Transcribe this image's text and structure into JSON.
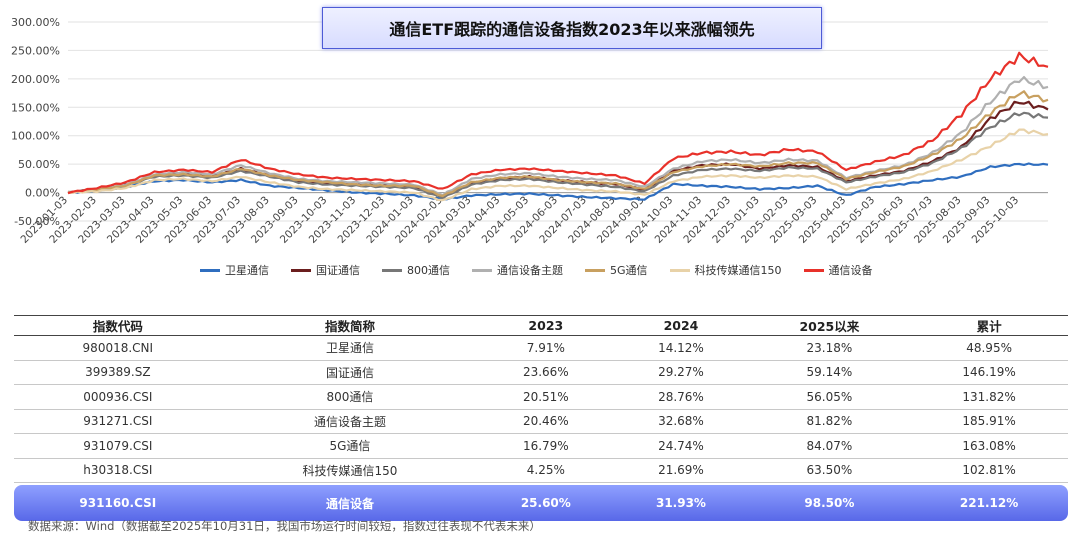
{
  "title": "通信ETF跟踪的通信设备指数2023年以来涨幅领先",
  "chart_data": {
    "type": "line",
    "x": [
      "2023-01-03",
      "2023-02-03",
      "2023-03-03",
      "2023-04-03",
      "2023-05-03",
      "2023-06-03",
      "2023-07-03",
      "2023-08-03",
      "2023-09-03",
      "2023-10-03",
      "2023-11-03",
      "2023-12-03",
      "2024-01-03",
      "2024-02-03",
      "2024-03-03",
      "2024-04-03",
      "2024-05-03",
      "2024-06-03",
      "2024-07-03",
      "2024-08-03",
      "2024-09-03",
      "2024-10-03",
      "2024-11-03",
      "2024-12-03",
      "2025-01-03",
      "2025-02-03",
      "2025-03-03",
      "2025-04-03",
      "2025-05-03",
      "2025-06-03",
      "2025-07-03",
      "2025-08-03",
      "2025-09-03",
      "2025-10-03",
      "2025-10-31"
    ],
    "x_tick_labels": [
      "2023-01-03",
      "2023-02-03",
      "2023-03-03",
      "2023-04-03",
      "2023-05-03",
      "2023-06-03",
      "2023-07-03",
      "2023-08-03",
      "2023-09-03",
      "2023-10-03",
      "2023-11-03",
      "2023-12-03",
      "2024-01-03",
      "2024-02-03",
      "2024-03-03",
      "2024-04-03",
      "2024-05-03",
      "2024-06-03",
      "2024-07-03",
      "2024-08-03",
      "2024-09-03",
      "2024-10-03",
      "2024-11-03",
      "2024-12-03",
      "2025-01-03",
      "2025-02-03",
      "2025-03-03",
      "2025-04-03",
      "2025-05-03",
      "2025-06-03",
      "2025-07-03",
      "2025-08-03",
      "2025-09-03",
      "2025-10-03"
    ],
    "y_tick_labels": [
      "-50.00%",
      "0.00%",
      "50.00%",
      "100.00%",
      "150.00%",
      "200.00%",
      "250.00%",
      "300.00%"
    ],
    "ylim": [
      -50,
      300
    ],
    "grid": true,
    "legend_position": "bottom",
    "series": [
      {
        "name": "卫星通信",
        "color": "#2f6ebf",
        "values": [
          0,
          3,
          10,
          20,
          22,
          18,
          22,
          12,
          8,
          4,
          0,
          -2,
          -5,
          -12,
          -5,
          -3,
          -2,
          -5,
          -8,
          -10,
          -12,
          15,
          12,
          10,
          6,
          8,
          12,
          -5,
          10,
          15,
          22,
          28,
          45,
          50,
          48.95
        ]
      },
      {
        "name": "国证通信",
        "color": "#6b1e1e",
        "values": [
          0,
          6,
          14,
          30,
          32,
          28,
          42,
          30,
          20,
          16,
          14,
          12,
          10,
          -8,
          16,
          25,
          28,
          22,
          18,
          15,
          5,
          38,
          48,
          50,
          42,
          48,
          45,
          20,
          30,
          38,
          55,
          80,
          130,
          160,
          146.19
        ]
      },
      {
        "name": "800通信",
        "color": "#777777",
        "values": [
          0,
          5,
          13,
          28,
          30,
          26,
          38,
          28,
          18,
          14,
          12,
          10,
          8,
          -9,
          14,
          22,
          24,
          18,
          14,
          10,
          2,
          30,
          40,
          42,
          38,
          44,
          42,
          18,
          28,
          36,
          52,
          78,
          115,
          140,
          131.82
        ]
      },
      {
        "name": "通信设备主题",
        "color": "#b0b0b0",
        "values": [
          0,
          6,
          14,
          32,
          36,
          32,
          48,
          34,
          24,
          20,
          18,
          16,
          14,
          -4,
          24,
          32,
          34,
          28,
          24,
          22,
          10,
          42,
          55,
          58,
          52,
          58,
          56,
          26,
          38,
          48,
          70,
          105,
          160,
          200,
          185.91
        ]
      },
      {
        "name": "5G通信",
        "color": "#c8a060",
        "values": [
          0,
          5,
          12,
          30,
          32,
          28,
          42,
          30,
          22,
          18,
          14,
          12,
          12,
          -6,
          18,
          26,
          28,
          22,
          18,
          16,
          6,
          36,
          46,
          50,
          46,
          52,
          52,
          24,
          36,
          46,
          66,
          95,
          140,
          175,
          163.08
        ]
      },
      {
        "name": "科技传媒通信150",
        "color": "#e8d2a8",
        "values": [
          0,
          2,
          8,
          22,
          24,
          20,
          28,
          18,
          10,
          6,
          4,
          2,
          0,
          -14,
          6,
          12,
          12,
          8,
          4,
          2,
          -4,
          20,
          28,
          30,
          26,
          30,
          28,
          6,
          16,
          24,
          38,
          58,
          82,
          110,
          102.81
        ]
      },
      {
        "name": "通信设备",
        "color": "#e8312a",
        "values": [
          0,
          8,
          18,
          36,
          40,
          36,
          58,
          42,
          32,
          26,
          24,
          22,
          20,
          6,
          32,
          40,
          42,
          38,
          34,
          30,
          16,
          60,
          70,
          72,
          66,
          76,
          72,
          40,
          54,
          66,
          92,
          138,
          200,
          240,
          221.12
        ]
      }
    ]
  },
  "table": {
    "headers": [
      "指数代码",
      "指数简称",
      "2023",
      "2024",
      "2025以来",
      "累计"
    ],
    "rows": [
      [
        "980018.CNI",
        "卫星通信",
        "7.91%",
        "14.12%",
        "23.18%",
        "48.95%"
      ],
      [
        "399389.SZ",
        "国证通信",
        "23.66%",
        "29.27%",
        "59.14%",
        "146.19%"
      ],
      [
        "000936.CSI",
        "800通信",
        "20.51%",
        "28.76%",
        "56.05%",
        "131.82%"
      ],
      [
        "931271.CSI",
        "通信设备主题",
        "20.46%",
        "32.68%",
        "81.82%",
        "185.91%"
      ],
      [
        "931079.CSI",
        "5G通信",
        "16.79%",
        "24.74%",
        "84.07%",
        "163.08%"
      ],
      [
        "h30318.CSI",
        "科技传媒通信150",
        "4.25%",
        "21.69%",
        "63.50%",
        "102.81%"
      ]
    ],
    "highlight_row": [
      "931160.CSI",
      "通信设备",
      "25.60%",
      "31.93%",
      "98.50%",
      "221.12%"
    ]
  },
  "note": "数据来源：Wind（数据截至2025年10月31日，我国市场运行时间较短，指数过往表现不代表未来）"
}
